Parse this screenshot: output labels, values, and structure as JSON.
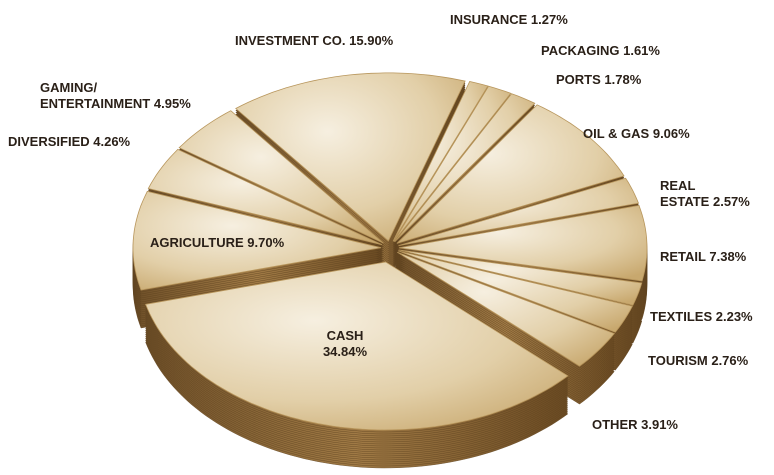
{
  "chart_data": {
    "type": "pie",
    "categories": [
      "INVESTMENT CO.",
      "INSURANCE",
      "PACKAGING",
      "PORTS",
      "OIL & GAS",
      "REAL\nESTATE",
      "RETAIL",
      "TEXTILES",
      "TOURISM",
      "OTHER",
      "CASH",
      "AGRICULTURE",
      "DIVERSIFIED",
      "GAMING/\nENTERTAINMENT"
    ],
    "values": [
      15.9,
      1.27,
      1.61,
      1.78,
      9.06,
      2.57,
      7.38,
      2.23,
      2.76,
      3.91,
      34.84,
      9.7,
      4.26,
      4.95
    ],
    "value_labels": [
      "15.90%",
      "1.27%",
      "1.61%",
      "1.78%",
      "9.06%",
      "2.57%",
      "7.38%",
      "2.23%",
      "2.76%",
      "3.91%",
      "34.84%",
      "9.70%",
      "4.26%",
      "4.95%"
    ],
    "color": "#d9c39a"
  }
}
